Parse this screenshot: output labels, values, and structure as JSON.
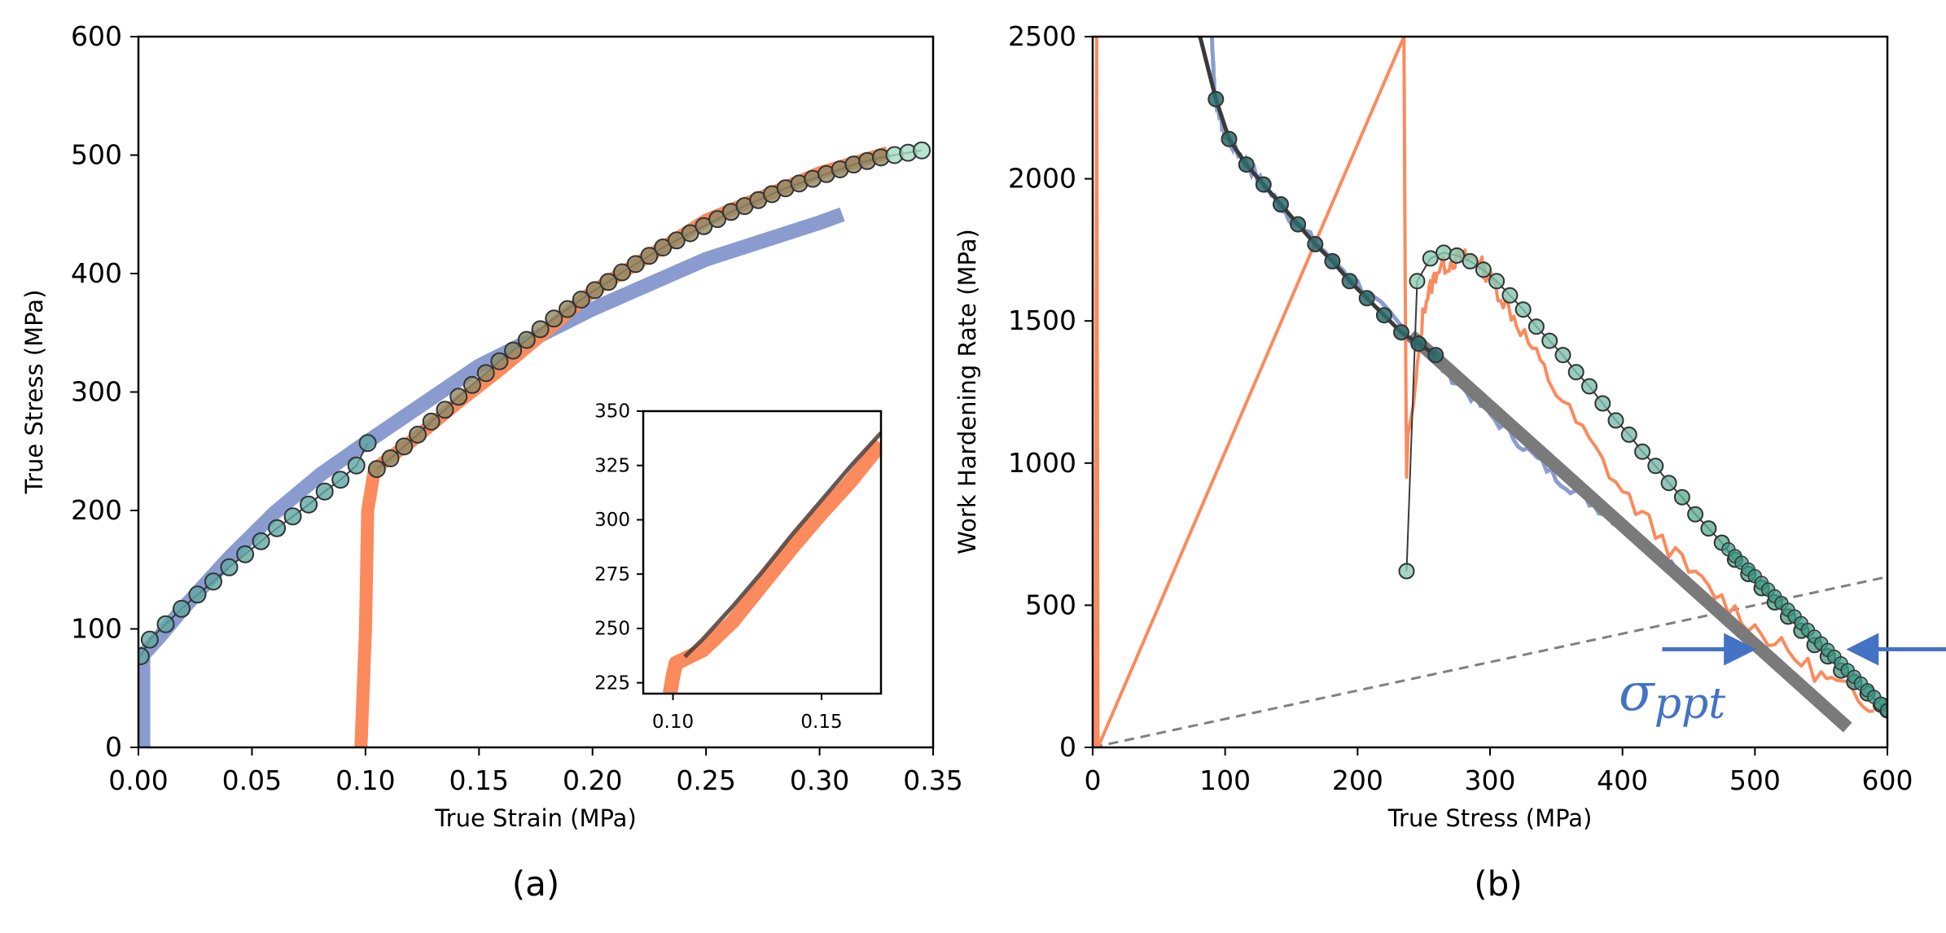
{
  "colors": {
    "blue_curve": "#8a9ccf",
    "orange_curve": "#fb8a5c",
    "fit_line": "#3a3a3a",
    "gray_line": "#7a7a7a",
    "dash_line": "#808080",
    "annotation": "#4472c4",
    "marker_edge": "#333333"
  },
  "chart_data": [
    {
      "id": "a",
      "type": "line",
      "panel_label": "(a)",
      "xlabel": "True Strain (MPa)",
      "ylabel": "True Stress (MPa)",
      "xlim": [
        0,
        0.35
      ],
      "ylim": [
        0,
        600
      ],
      "xticks": [
        0,
        0.05,
        0.1,
        0.15,
        0.2,
        0.25,
        0.3,
        0.35
      ],
      "xtick_labels": [
        "0.00",
        "0.05",
        "0.10",
        "0.15",
        "0.20",
        "0.25",
        "0.30",
        "0.35"
      ],
      "yticks": [
        0,
        100,
        200,
        300,
        400,
        500,
        600
      ],
      "ytick_labels": [
        "0",
        "100",
        "200",
        "300",
        "400",
        "500",
        "600"
      ],
      "series": [
        {
          "name": "blue measured",
          "style": "thick-line",
          "x": [
            0.002,
            0.002,
            0.01,
            0.02,
            0.04,
            0.06,
            0.08,
            0.1,
            0.15,
            0.2,
            0.25,
            0.3,
            0.31
          ],
          "y": [
            0,
            78,
            95,
            118,
            160,
            198,
            230,
            257,
            322,
            370,
            412,
            443,
            450
          ]
        },
        {
          "name": "orange measured",
          "style": "thick-line",
          "x": [
            0.098,
            0.1,
            0.101,
            0.104,
            0.12,
            0.14,
            0.16,
            0.18,
            0.2,
            0.25,
            0.3,
            0.33
          ],
          "y": [
            0,
            100,
            200,
            235,
            258,
            290,
            320,
            352,
            385,
            445,
            485,
            502
          ]
        },
        {
          "name": "blue model",
          "style": "markers",
          "x": [
            0.001,
            0.005,
            0.012,
            0.019,
            0.026,
            0.033,
            0.04,
            0.047,
            0.054,
            0.061,
            0.068,
            0.075,
            0.082,
            0.089,
            0.096,
            0.101
          ],
          "y": [
            77,
            91,
            104,
            117,
            129,
            140,
            152,
            163,
            174,
            185,
            195,
            205,
            216,
            226,
            238,
            257
          ]
        },
        {
          "name": "orange model",
          "style": "markers",
          "x": [
            0.105,
            0.111,
            0.117,
            0.123,
            0.129,
            0.135,
            0.141,
            0.147,
            0.153,
            0.159,
            0.165,
            0.171,
            0.177,
            0.183,
            0.189,
            0.195,
            0.201,
            0.207,
            0.213,
            0.219,
            0.225,
            0.231,
            0.237,
            0.243,
            0.249,
            0.255,
            0.261,
            0.267,
            0.273,
            0.279,
            0.285,
            0.291,
            0.297,
            0.303,
            0.309,
            0.315,
            0.321,
            0.327,
            0.333,
            0.339,
            0.345
          ],
          "y": [
            235,
            244,
            254,
            264,
            275,
            285,
            296,
            306,
            316,
            326,
            335,
            344,
            353,
            362,
            370,
            378,
            386,
            393,
            401,
            408,
            415,
            422,
            428,
            434,
            440,
            446,
            452,
            457,
            462,
            467,
            472,
            476,
            480,
            484,
            488,
            492,
            495,
            498,
            500,
            502,
            504
          ]
        }
      ],
      "inset": {
        "xlim": [
          0.09,
          0.17
        ],
        "ylim": [
          220,
          350
        ],
        "xticks": [
          0.1,
          0.15
        ],
        "xtick_labels": [
          "0.10",
          "0.15"
        ],
        "yticks": [
          225,
          250,
          275,
          300,
          325,
          350
        ],
        "ytick_labels": [
          "225",
          "250",
          "275",
          "300",
          "325",
          "350"
        ],
        "series": [
          {
            "name": "orange measured",
            "x": [
              0.099,
              0.1,
              0.101,
              0.104,
              0.11,
              0.12,
              0.13,
              0.14,
              0.15,
              0.16,
              0.17
            ],
            "y": [
              220,
              228,
              234,
              236,
              240,
              253,
              270,
              287,
              303,
              318,
              335
            ]
          },
          {
            "name": "model",
            "x": [
              0.104,
              0.11,
              0.12,
              0.13,
              0.14,
              0.15,
              0.16,
              0.17
            ],
            "y": [
              237,
              245,
              260,
              276,
              293,
              309,
              325,
              340
            ]
          }
        ]
      }
    },
    {
      "id": "b",
      "type": "line",
      "panel_label": "(b)",
      "xlabel": "True Stress (MPa)",
      "ylabel": "Work Hardening Rate (MPa)",
      "xlim": [
        0,
        600
      ],
      "ylim": [
        0,
        2500
      ],
      "xticks": [
        0,
        100,
        200,
        300,
        400,
        500,
        600
      ],
      "xtick_labels": [
        "0",
        "100",
        "200",
        "300",
        "400",
        "500",
        "600"
      ],
      "yticks": [
        0,
        500,
        1000,
        1500,
        2000,
        2500
      ],
      "ytick_labels": [
        "0",
        "500",
        "1000",
        "1500",
        "2000",
        "2500"
      ],
      "series": [
        {
          "name": "blue measured",
          "style": "noisy-line",
          "x": [
            90,
            92,
            100,
            120,
            150,
            200,
            250,
            300,
            350,
            400,
            440
          ],
          "y": [
            2500,
            2300,
            2150,
            2030,
            1860,
            1630,
            1400,
            1170,
            950,
            780,
            630
          ]
        },
        {
          "name": "orange measured",
          "style": "noisy-line",
          "x": [
            2,
            3,
            4,
            235,
            236,
            237,
            238,
            242,
            250,
            260,
            275,
            290,
            300,
            320,
            350,
            400,
            450,
            500,
            550,
            590
          ],
          "y": [
            0,
            2500,
            0,
            2500,
            1600,
            950,
            1100,
            1200,
            1550,
            1680,
            1720,
            1720,
            1650,
            1500,
            1250,
            900,
            620,
            420,
            250,
            150
          ]
        },
        {
          "name": "gray linear fit",
          "style": "thick-gray",
          "x": [
            240,
            570
          ],
          "y": [
            1450,
            70
          ]
        },
        {
          "name": "blue model",
          "style": "markers-line",
          "x": [
            93,
            103,
            116,
            129,
            142,
            155,
            168,
            181,
            194,
            207,
            220,
            233,
            246,
            259
          ],
          "y": [
            2280,
            2140,
            2050,
            1980,
            1910,
            1840,
            1770,
            1710,
            1640,
            1580,
            1520,
            1460,
            1420,
            1380
          ]
        },
        {
          "name": "orange model",
          "style": "markers-line",
          "x": [
            237,
            245,
            255,
            265,
            275,
            285,
            295,
            305,
            315,
            325,
            335,
            345,
            355,
            365,
            375,
            385,
            395,
            405,
            415,
            425,
            435,
            445,
            455,
            465,
            475,
            485,
            495,
            505,
            515,
            525,
            535,
            545,
            555,
            565,
            575,
            585,
            595,
            600
          ],
          "y": [
            620,
            1640,
            1720,
            1740,
            1730,
            1710,
            1680,
            1640,
            1590,
            1540,
            1480,
            1430,
            1380,
            1320,
            1270,
            1210,
            1150,
            1100,
            1040,
            990,
            930,
            880,
            820,
            770,
            720,
            660,
            610,
            560,
            510,
            460,
            410,
            360,
            320,
            270,
            230,
            190,
            150,
            130
          ]
        },
        {
          "name": "dashed reference",
          "style": "dashed",
          "x": [
            0,
            600
          ],
          "y": [
            0,
            600
          ]
        }
      ],
      "annotation": {
        "label": "σ_ppt",
        "arrows": [
          {
            "from": [
              430,
              345
            ],
            "to": [
              495,
              345
            ]
          },
          {
            "from": [
              645,
              345
            ],
            "to": [
              575,
              345
            ]
          }
        ]
      }
    }
  ]
}
